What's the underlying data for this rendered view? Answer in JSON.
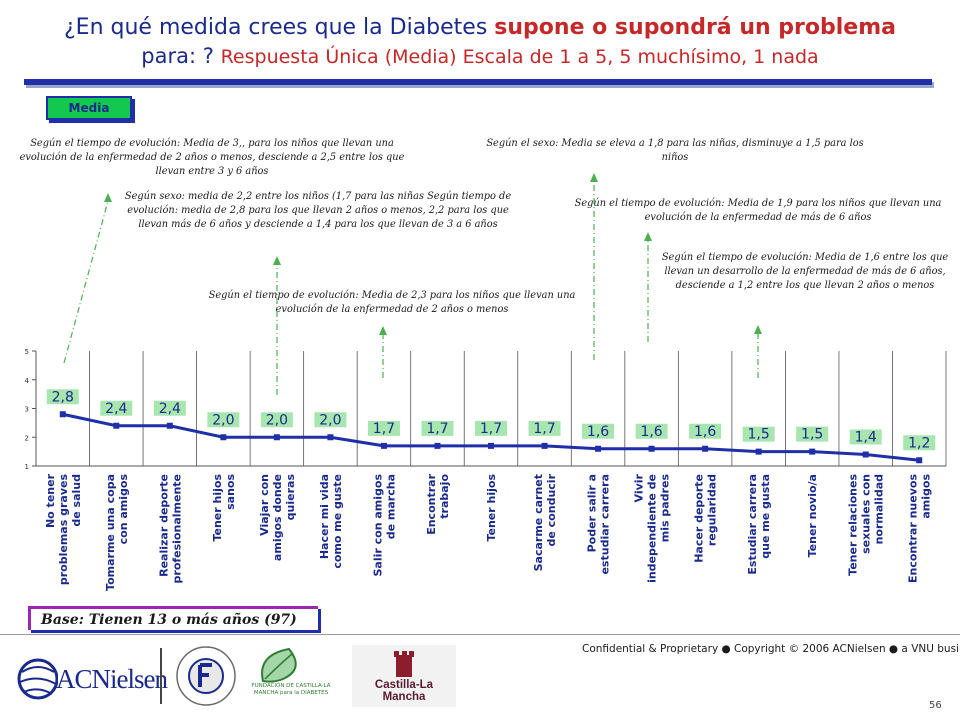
{
  "title": {
    "line1_prefix": "¿En qué medida crees que la Diabetes ",
    "line1_emph": "supone o supondrá un problema",
    "line2_prefix": "para: ? ",
    "line2_red": "Respuesta Única (Media) Escala de 1 a 5, 5 muchísimo, 1 nada"
  },
  "tag": {
    "label": "Media"
  },
  "notes": [
    "Según el tiempo de evolución: Media de 3,, para los niños que llevan una evolución de la enfermedad de 2 años o menos, desciende a 2,5 entre los que llevan entre 3 y 6 años",
    "Según sexo: media de 2,2 entre los niños (1,7 para las niñas Según tiempo de evolución: media de 2,8 para los que llevan 2 años o menos, 2,2 para los que llevan más de 6 años y desciende a 1,4 para los que llevan de 3 a 6 años",
    "Según el tiempo de evolución: Media de 2,3 para los niños que llevan una evolución de la enfermedad de 2 años o menos",
    "Según el sexo: Media se eleva a 1,8 para las niñas, disminuye a 1,5 para los niños",
    "Según el tiempo de evolución: Media de 1,9 para los niños que llevan una evolución de la enfermedad de más de 6 años",
    "Según el tiempo de evolución: Media de 1,6 entre los que llevan un desarrollo de la enfermedad de más de 6 años, desciende a 1,2 entre los que llevan 2 años o menos"
  ],
  "chart_data": {
    "type": "line",
    "categories": [
      "No tener problemas graves de salud",
      "Tomarme una copa con amigos",
      "Realizar deporte profesionalmente",
      "Tener hijos sanos",
      "Viajar con amigos donde quieras",
      "Hacer mi vida como me guste",
      "Salir con amigos de marcha",
      "Encontrar trabajo",
      "Tener hijos",
      "Sacarme carnet de conducir",
      "Poder salir a estudiar carrera",
      "Vivir independiente de mis padres",
      "Hacer deporte regularidad",
      "Estudiar carrera que me gusta",
      "Tener novio/a",
      "Tener relaciones sexuales con normalidad",
      "Encontrar nuevos amigos"
    ],
    "values": [
      2.8,
      2.4,
      2.4,
      2.0,
      2.0,
      2.0,
      1.7,
      1.7,
      1.7,
      1.7,
      1.6,
      1.6,
      1.6,
      1.5,
      1.5,
      1.4,
      1.2
    ],
    "value_labels": [
      "2,8",
      "2,4",
      "2,4",
      "2,0",
      "2,0",
      "2,0",
      "1,7",
      "1,7",
      "1,7",
      "1,7",
      "1,6",
      "1,6",
      "1,6",
      "1,5",
      "1,5",
      "1,4",
      "1,2"
    ],
    "ylim": [
      1,
      5
    ],
    "yticks": [
      "1",
      "2",
      "3",
      "4",
      "5"
    ],
    "grid": "vertical category separators",
    "line_color": "#1f2fa8",
    "label_box_color": "#a8e6b0"
  },
  "base": {
    "label": "Base: Tienen 13 o más años (97)"
  },
  "footer": {
    "confidential": "Confidential & Proprietary ● Copyright © 2006 ACNielsen ● a VNU business",
    "page": "56"
  },
  "logos": {
    "acnielsen": "ACNielsen",
    "fundacion_diabetes": "FUNDACION PARA LA DIABETES",
    "fundacion_clm": "FUNDACIÓN DE CASTILLA-LA MANCHA para la DIABETES",
    "castilla": "Castilla-La Mancha"
  },
  "colors": {
    "title_blue": "#1a2a8c",
    "title_red": "#c62828",
    "accent_green": "#12c84e",
    "arrow_green": "#4caf50"
  }
}
